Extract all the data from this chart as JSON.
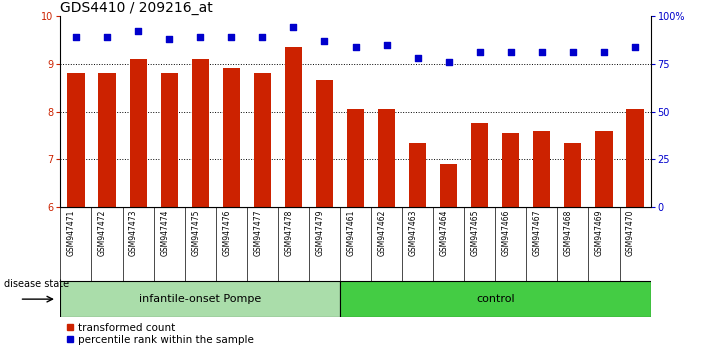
{
  "title": "GDS4410 / 209216_at",
  "samples": [
    "GSM947471",
    "GSM947472",
    "GSM947473",
    "GSM947474",
    "GSM947475",
    "GSM947476",
    "GSM947477",
    "GSM947478",
    "GSM947479",
    "GSM947461",
    "GSM947462",
    "GSM947463",
    "GSM947464",
    "GSM947465",
    "GSM947466",
    "GSM947467",
    "GSM947468",
    "GSM947469",
    "GSM947470"
  ],
  "bar_values": [
    8.8,
    8.8,
    9.1,
    8.8,
    9.1,
    8.9,
    8.8,
    9.35,
    8.65,
    8.05,
    8.05,
    7.35,
    6.9,
    7.75,
    7.55,
    7.6,
    7.35,
    7.6,
    8.05
  ],
  "dot_values": [
    89,
    89,
    92,
    88,
    89,
    89,
    89,
    94,
    87,
    84,
    85,
    78,
    76,
    81,
    81,
    81,
    81,
    81,
    84
  ],
  "ylim_left": [
    6,
    10
  ],
  "ylim_right": [
    0,
    100
  ],
  "yticks_left": [
    6,
    7,
    8,
    9,
    10
  ],
  "yticks_right": [
    0,
    25,
    50,
    75,
    100
  ],
  "ytick_labels_right": [
    "0",
    "25",
    "50",
    "75",
    "100%"
  ],
  "bar_color": "#cc2200",
  "dot_color": "#0000cc",
  "sample_bg_color": "#cccccc",
  "group1_label": "infantile-onset Pompe",
  "group2_label": "control",
  "group1_color": "#aaddaa",
  "group2_color": "#44cc44",
  "disease_state_label": "disease state",
  "legend_bar_label": "transformed count",
  "legend_dot_label": "percentile rank within the sample",
  "group1_count": 9,
  "group2_count": 10,
  "title_fontsize": 10,
  "tick_fontsize": 7,
  "sample_fontsize": 5.5,
  "legend_fontsize": 7.5,
  "group_fontsize": 8
}
